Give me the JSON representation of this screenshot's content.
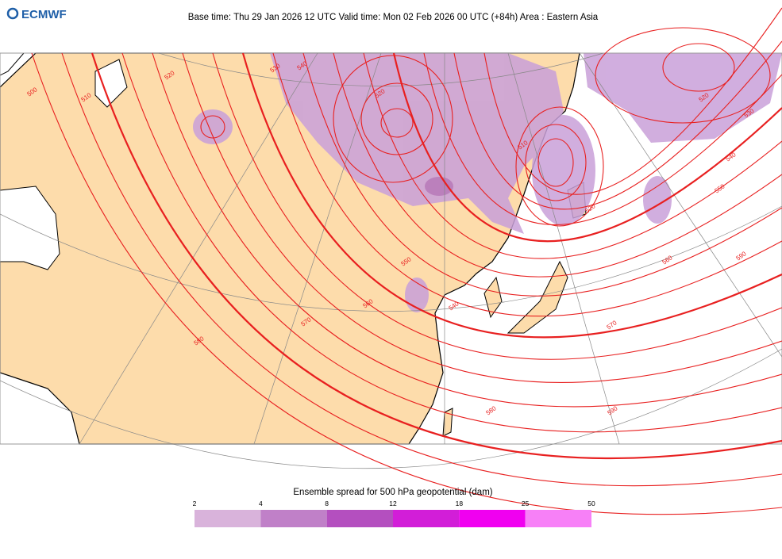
{
  "header": {
    "logo": "ECMWF",
    "title": "Base time: Thu 29 Jan 2026 12 UTC Valid time: Mon 02 Feb 2026 00 UTC (+84h) Area : Eastern Asia"
  },
  "map": {
    "contour_labels": [
      500,
      510,
      520,
      530,
      540,
      520,
      510,
      520,
      520,
      530,
      540,
      550,
      560,
      590,
      550,
      560,
      570,
      580,
      540,
      570,
      580,
      590
    ]
  },
  "legend": {
    "title": "Ensemble spread for 500 hPa geopotential (dam)",
    "ticks": [
      2,
      4,
      8,
      12,
      18,
      25,
      50
    ],
    "colors": [
      "#d9b3db",
      "#c080c8",
      "#b44fbf",
      "#d21ed8",
      "#f000f0",
      "#f780f7"
    ]
  }
}
